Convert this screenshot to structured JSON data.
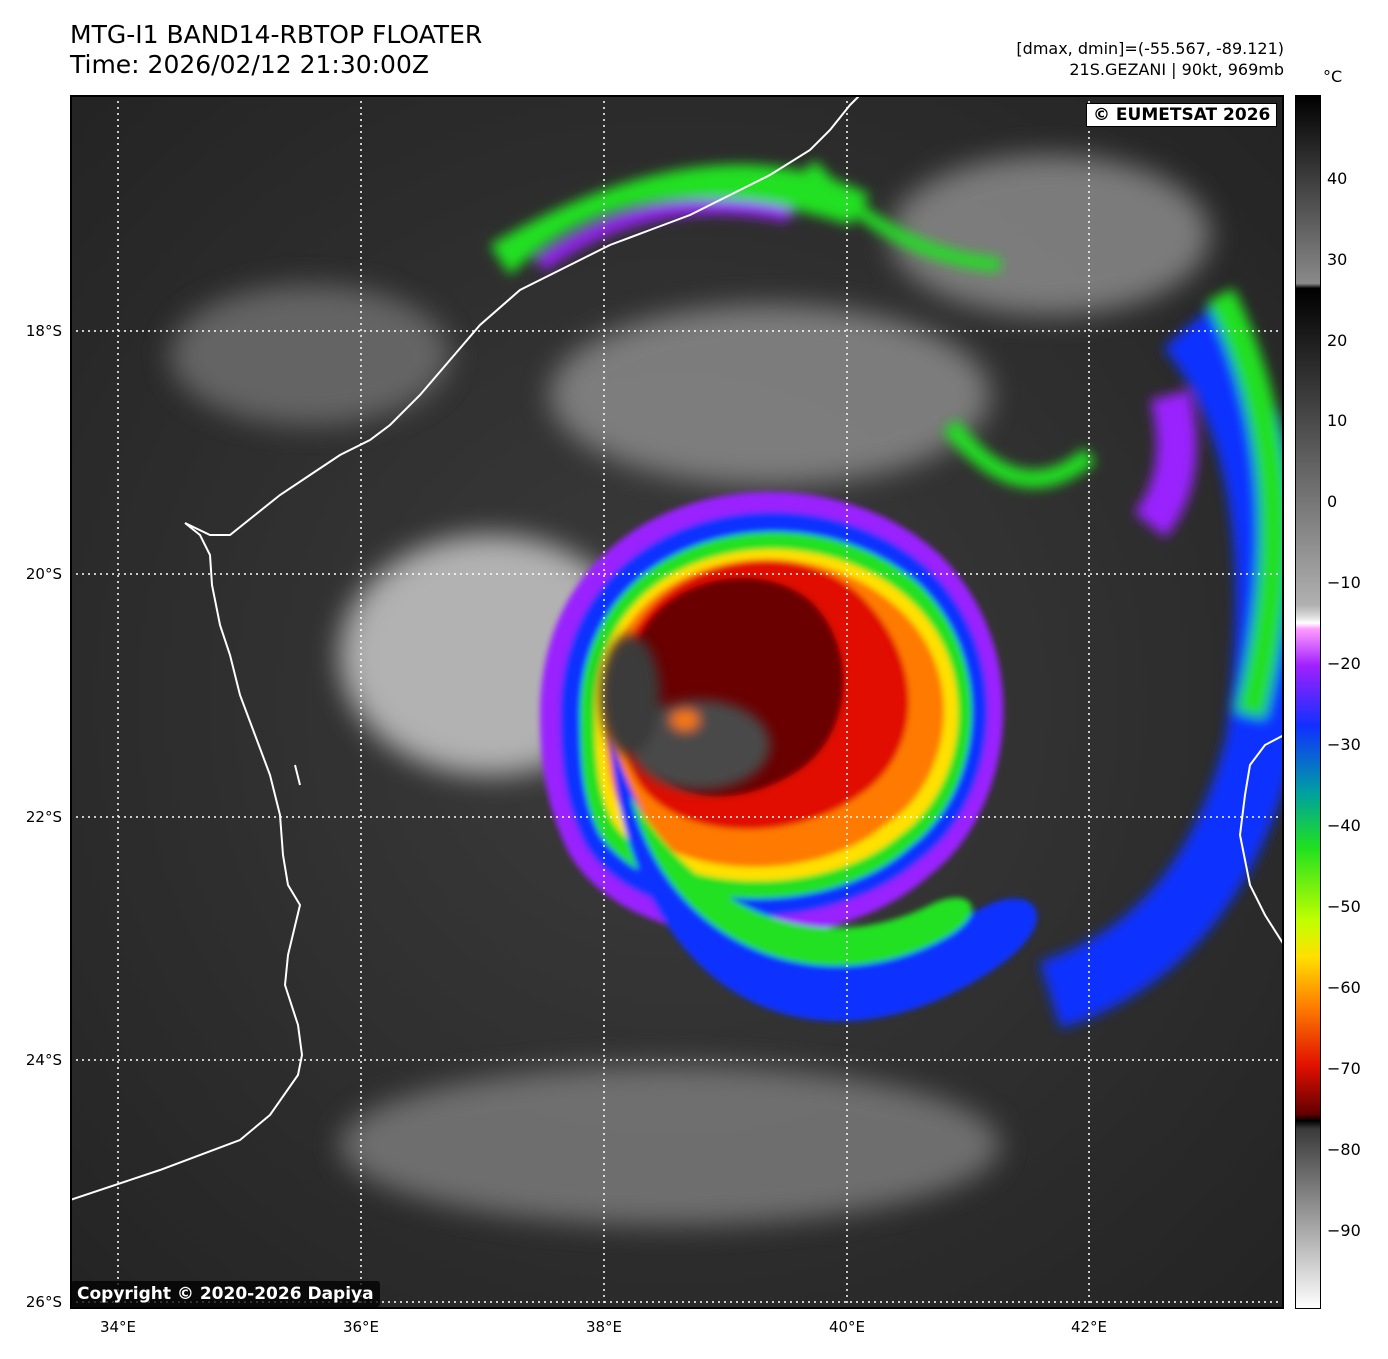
{
  "header": {
    "title_line1": "MTG-I1 BAND14-RBTOP FLOATER",
    "title_line2": "Time: 2026/02/12 21:30:00Z",
    "stats": "[dmax, dmin]=(-55.567, -89.121)",
    "storm": "21S.GEZANI | 90kt, 969mb"
  },
  "map": {
    "lat_labels": [
      "18°S",
      "20°S",
      "22°S",
      "24°S",
      "26°S"
    ],
    "lon_labels": [
      "34°E",
      "36°E",
      "38°E",
      "40°E",
      "42°E"
    ],
    "badge_top": "© EUMETSAT 2026",
    "badge_bottom": "Copyright © 2020-2026 Dapiya",
    "coastline_color": "#ffffff",
    "gridline_color": "#ffffff"
  },
  "colorbar": {
    "unit": "°C",
    "ticks": [
      "40",
      "30",
      "20",
      "10",
      "0",
      "−10",
      "−20",
      "−30",
      "−40",
      "−50",
      "−60",
      "−70",
      "−80",
      "−90"
    ],
    "colors": {
      "eye_warm": "#3a3a3a",
      "cloud_red": "#e01000",
      "cloud_orange": "#ff7a00",
      "cloud_yellow": "#ffe000",
      "cloud_green": "#20e020",
      "cloud_blue": "#1030ff",
      "cloud_purple": "#9a20ff"
    }
  }
}
